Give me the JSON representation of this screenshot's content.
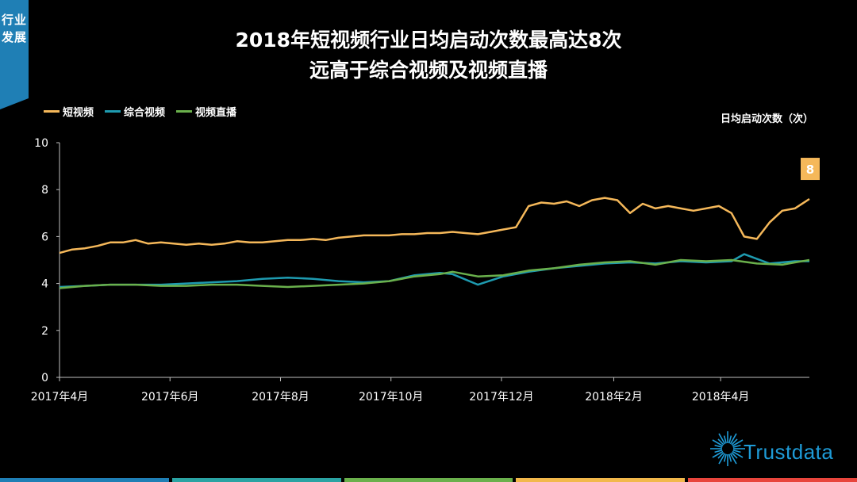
{
  "side_tab": {
    "line1": "行业",
    "line2": "发展"
  },
  "title": {
    "line1": "2018年短视频行业日均启动次数最高达8次",
    "line2": "远高于综合视频及视频直播"
  },
  "unit_label": "日均启动次数（次）",
  "logo": {
    "text": "Trustdata",
    "icon": "starburst-icon",
    "color": "#1e9bd7"
  },
  "bottom_bar_colors": [
    "#1f7fb5",
    "#2aa3a3",
    "#6ab04c",
    "#f2b84b",
    "#e8453c"
  ],
  "chart_data": {
    "type": "line",
    "title": "2018年短视频行业日均启动次数最高达8次 远高于综合视频及视频直播",
    "ylabel": "日均启动次数（次）",
    "ylim": [
      0,
      10
    ],
    "yticks": [
      0,
      2,
      4,
      6,
      8,
      10
    ],
    "x_tick_labels": [
      "2017年4月",
      "2017年6月",
      "2017年8月",
      "2017年10月",
      "2017年12月",
      "2018年2月",
      "2018年4月"
    ],
    "x_tick_dates": [
      "2017-04-01",
      "2017-06-01",
      "2017-08-01",
      "2017-10-01",
      "2017-12-01",
      "2018-02-01",
      "2018-04-01"
    ],
    "xlim": [
      "2017-04-01",
      "2018-05-20"
    ],
    "grid": false,
    "legend_position": "top-left",
    "annotation": {
      "text": "8",
      "series": "短视频",
      "date": "2018-05-20",
      "value": 7.6
    },
    "series": [
      {
        "name": "短视频",
        "color": "#f5b85a",
        "points": [
          [
            "2017-04-01",
            5.3
          ],
          [
            "2017-04-08",
            5.45
          ],
          [
            "2017-04-15",
            5.5
          ],
          [
            "2017-04-22",
            5.6
          ],
          [
            "2017-04-29",
            5.75
          ],
          [
            "2017-05-06",
            5.75
          ],
          [
            "2017-05-13",
            5.85
          ],
          [
            "2017-05-20",
            5.7
          ],
          [
            "2017-05-27",
            5.75
          ],
          [
            "2017-06-03",
            5.7
          ],
          [
            "2017-06-10",
            5.65
          ],
          [
            "2017-06-17",
            5.7
          ],
          [
            "2017-06-24",
            5.65
          ],
          [
            "2017-07-01",
            5.7
          ],
          [
            "2017-07-08",
            5.8
          ],
          [
            "2017-07-15",
            5.75
          ],
          [
            "2017-07-22",
            5.75
          ],
          [
            "2017-07-29",
            5.8
          ],
          [
            "2017-08-05",
            5.85
          ],
          [
            "2017-08-12",
            5.85
          ],
          [
            "2017-08-19",
            5.9
          ],
          [
            "2017-08-26",
            5.85
          ],
          [
            "2017-09-02",
            5.95
          ],
          [
            "2017-09-09",
            6.0
          ],
          [
            "2017-09-16",
            6.05
          ],
          [
            "2017-09-23",
            6.05
          ],
          [
            "2017-09-30",
            6.05
          ],
          [
            "2017-10-07",
            6.1
          ],
          [
            "2017-10-14",
            6.1
          ],
          [
            "2017-10-21",
            6.15
          ],
          [
            "2017-10-28",
            6.15
          ],
          [
            "2017-11-04",
            6.2
          ],
          [
            "2017-11-11",
            6.15
          ],
          [
            "2017-11-18",
            6.1
          ],
          [
            "2017-11-25",
            6.2
          ],
          [
            "2017-12-02",
            6.3
          ],
          [
            "2017-12-09",
            6.4
          ],
          [
            "2017-12-16",
            7.3
          ],
          [
            "2017-12-23",
            7.45
          ],
          [
            "2017-12-30",
            7.4
          ],
          [
            "2018-01-06",
            7.5
          ],
          [
            "2018-01-13",
            7.3
          ],
          [
            "2018-01-20",
            7.55
          ],
          [
            "2018-01-27",
            7.65
          ],
          [
            "2018-02-03",
            7.55
          ],
          [
            "2018-02-10",
            7.0
          ],
          [
            "2018-02-17",
            7.4
          ],
          [
            "2018-02-24",
            7.2
          ],
          [
            "2018-03-03",
            7.3
          ],
          [
            "2018-03-10",
            7.2
          ],
          [
            "2018-03-17",
            7.1
          ],
          [
            "2018-03-24",
            7.2
          ],
          [
            "2018-03-31",
            7.3
          ],
          [
            "2018-04-07",
            7.0
          ],
          [
            "2018-04-14",
            6.0
          ],
          [
            "2018-04-21",
            5.9
          ],
          [
            "2018-04-28",
            6.6
          ],
          [
            "2018-05-05",
            7.1
          ],
          [
            "2018-05-12",
            7.2
          ],
          [
            "2018-05-20",
            7.6
          ]
        ]
      },
      {
        "name": "综合视频",
        "color": "#1e9bb0",
        "points": [
          [
            "2017-04-01",
            3.85
          ],
          [
            "2017-04-15",
            3.9
          ],
          [
            "2017-04-29",
            3.95
          ],
          [
            "2017-05-13",
            3.95
          ],
          [
            "2017-05-27",
            3.95
          ],
          [
            "2017-06-10",
            4.0
          ],
          [
            "2017-06-24",
            4.05
          ],
          [
            "2017-07-08",
            4.1
          ],
          [
            "2017-07-22",
            4.2
          ],
          [
            "2017-08-05",
            4.25
          ],
          [
            "2017-08-19",
            4.2
          ],
          [
            "2017-09-02",
            4.1
          ],
          [
            "2017-09-16",
            4.05
          ],
          [
            "2017-09-30",
            4.1
          ],
          [
            "2017-10-14",
            4.35
          ],
          [
            "2017-10-28",
            4.45
          ],
          [
            "2017-11-04",
            4.4
          ],
          [
            "2017-11-18",
            3.95
          ],
          [
            "2017-12-02",
            4.3
          ],
          [
            "2017-12-16",
            4.5
          ],
          [
            "2017-12-30",
            4.65
          ],
          [
            "2018-01-13",
            4.75
          ],
          [
            "2018-01-27",
            4.85
          ],
          [
            "2018-02-10",
            4.9
          ],
          [
            "2018-02-24",
            4.85
          ],
          [
            "2018-03-10",
            4.95
          ],
          [
            "2018-03-24",
            4.9
          ],
          [
            "2018-04-07",
            4.95
          ],
          [
            "2018-04-14",
            5.25
          ],
          [
            "2018-04-28",
            4.85
          ],
          [
            "2018-05-12",
            4.95
          ],
          [
            "2018-05-20",
            4.95
          ]
        ]
      },
      {
        "name": "视频直播",
        "color": "#6ab04c",
        "points": [
          [
            "2017-04-01",
            3.8
          ],
          [
            "2017-04-15",
            3.9
          ],
          [
            "2017-04-29",
            3.95
          ],
          [
            "2017-05-13",
            3.95
          ],
          [
            "2017-05-27",
            3.9
          ],
          [
            "2017-06-10",
            3.9
          ],
          [
            "2017-06-24",
            3.95
          ],
          [
            "2017-07-08",
            3.95
          ],
          [
            "2017-07-22",
            3.9
          ],
          [
            "2017-08-05",
            3.85
          ],
          [
            "2017-08-19",
            3.9
          ],
          [
            "2017-09-02",
            3.95
          ],
          [
            "2017-09-16",
            4.0
          ],
          [
            "2017-09-30",
            4.1
          ],
          [
            "2017-10-14",
            4.3
          ],
          [
            "2017-10-28",
            4.4
          ],
          [
            "2017-11-04",
            4.5
          ],
          [
            "2017-11-18",
            4.3
          ],
          [
            "2017-12-02",
            4.35
          ],
          [
            "2017-12-16",
            4.55
          ],
          [
            "2017-12-30",
            4.65
          ],
          [
            "2018-01-13",
            4.8
          ],
          [
            "2018-01-27",
            4.9
          ],
          [
            "2018-02-10",
            4.95
          ],
          [
            "2018-02-24",
            4.8
          ],
          [
            "2018-03-10",
            5.0
          ],
          [
            "2018-03-24",
            4.95
          ],
          [
            "2018-04-07",
            5.0
          ],
          [
            "2018-04-21",
            4.85
          ],
          [
            "2018-05-05",
            4.8
          ],
          [
            "2018-05-12",
            4.9
          ],
          [
            "2018-05-20",
            5.0
          ]
        ]
      }
    ]
  }
}
